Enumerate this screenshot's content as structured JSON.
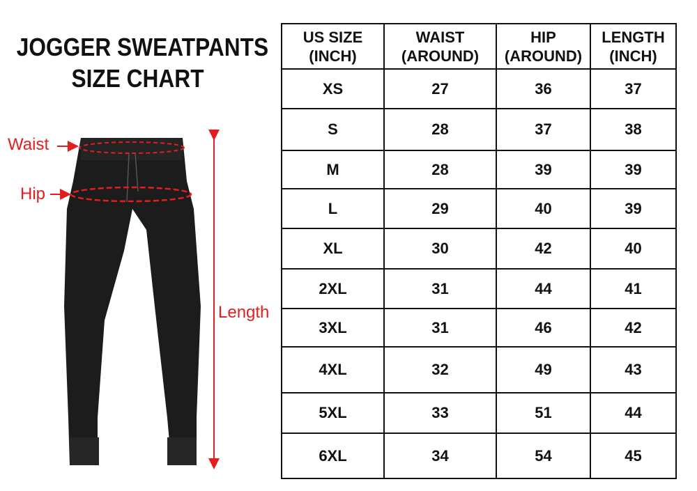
{
  "title": {
    "line1": "JOGGER SWEATPANTS",
    "line2": "SIZE CHART"
  },
  "labels": {
    "waist": "Waist",
    "hip": "Hip",
    "length": "Length"
  },
  "colors": {
    "annotation": "#e41e1e",
    "garment": "#1a1a1a"
  },
  "table": {
    "headers": [
      {
        "line1": "US SIZE",
        "line2": "(INCH)"
      },
      {
        "line1": "WAIST",
        "line2": "(AROUND)"
      },
      {
        "line1": "HIP",
        "line2": "(AROUND)"
      },
      {
        "line1": "LENGTH",
        "line2": "(INCH)"
      }
    ],
    "rows": [
      [
        "XS",
        "27",
        "36",
        "37"
      ],
      [
        "S",
        "28",
        "37",
        "38"
      ],
      [
        "M",
        "28",
        "39",
        "39"
      ],
      [
        "L",
        "29",
        "40",
        "39"
      ],
      [
        "XL",
        "30",
        "42",
        "40"
      ],
      [
        "2XL",
        "31",
        "44",
        "41"
      ],
      [
        "3XL",
        "31",
        "46",
        "42"
      ],
      [
        "4XL",
        "32",
        "49",
        "43"
      ],
      [
        "5XL",
        "33",
        "51",
        "44"
      ],
      [
        "6XL",
        "34",
        "54",
        "45"
      ]
    ]
  }
}
